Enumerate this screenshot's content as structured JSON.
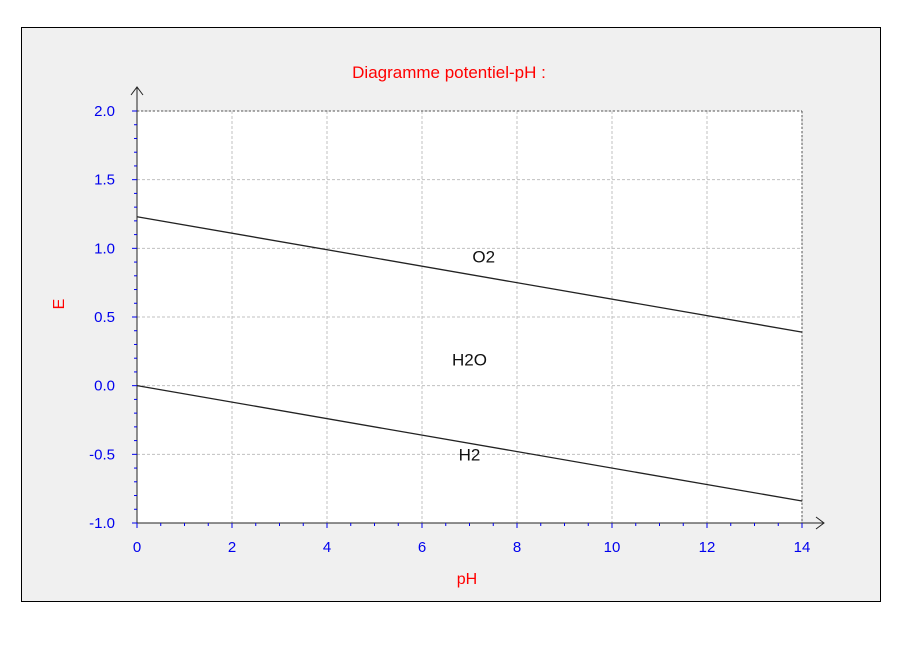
{
  "chart_data": {
    "type": "line",
    "title": "Diagramme potentiel-pH :",
    "xlabel": "pH",
    "ylabel": "E",
    "xlim": [
      0,
      14
    ],
    "ylim": [
      -1.0,
      2.0
    ],
    "xticks": [
      "0",
      "2",
      "4",
      "6",
      "8",
      "10",
      "12",
      "14"
    ],
    "yticks": [
      "2.0",
      "1.5",
      "1.0",
      "0.5",
      "0.0",
      "-0.5",
      "-1.0"
    ],
    "grid": true,
    "series": [
      {
        "x": [
          0,
          14
        ],
        "y": [
          1.23,
          0.39
        ]
      },
      {
        "x": [
          0,
          14
        ],
        "y": [
          0.0,
          -0.84
        ]
      }
    ],
    "annotations": [
      {
        "text": "O2",
        "x": 7.3,
        "y": 0.94
      },
      {
        "text": "H2O",
        "x": 7.0,
        "y": 0.19
      },
      {
        "text": "H2",
        "x": 7.0,
        "y": -0.5
      }
    ],
    "colors": {
      "title": "#ff0000",
      "axis_label": "#ff0000",
      "tick": "#0000ee",
      "line": "#222222",
      "grid": "#c0c0c0"
    }
  }
}
